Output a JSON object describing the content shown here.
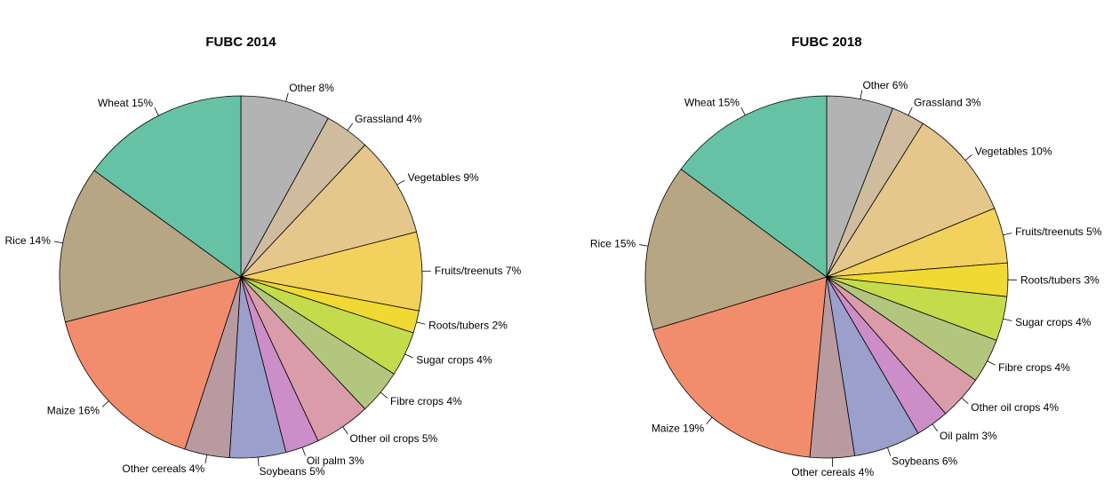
{
  "chart_data": [
    {
      "type": "pie",
      "title": "FUBC 2014",
      "start": "12 o'clock, clockwise",
      "slices": [
        {
          "label": "Other 8%",
          "value": 8,
          "color": "#b3b3b3"
        },
        {
          "label": "Grassland 4%",
          "value": 4,
          "color": "#cfbc9f"
        },
        {
          "label": "Vegetables 9%",
          "value": 9,
          "color": "#e5c78c"
        },
        {
          "label": "Fruits/treenuts 7%",
          "value": 7,
          "color": "#f2d15c"
        },
        {
          "label": "Roots/tubers 2%",
          "value": 2,
          "color": "#f0d932"
        },
        {
          "label": "Sugar crops 4%",
          "value": 4,
          "color": "#c4dc4c"
        },
        {
          "label": "Fibre crops 4%",
          "value": 4,
          "color": "#b3c67e"
        },
        {
          "label": "Other oil crops 5%",
          "value": 5,
          "color": "#d99ca8"
        },
        {
          "label": "Oil palm 3%",
          "value": 3,
          "color": "#cc8dc9"
        },
        {
          "label": "Soybeans 5%",
          "value": 5,
          "color": "#9b9fcb"
        },
        {
          "label": "Other cereals 4%",
          "value": 4,
          "color": "#b89aa0"
        },
        {
          "label": "Maize 16%",
          "value": 16,
          "color": "#f18d6c"
        },
        {
          "label": "Rice 14%",
          "value": 14,
          "color": "#b7a683"
        },
        {
          "label": "Wheat 15%",
          "value": 15,
          "color": "#66c2a5"
        }
      ]
    },
    {
      "type": "pie",
      "title": "FUBC 2018",
      "start": "12 o'clock, clockwise",
      "slices": [
        {
          "label": "Other 6%",
          "value": 6,
          "color": "#b3b3b3"
        },
        {
          "label": "Grassland 3%",
          "value": 3,
          "color": "#cfbc9f"
        },
        {
          "label": "Vegetables 10%",
          "value": 10,
          "color": "#e5c78c"
        },
        {
          "label": "Fruits/treenuts 5%",
          "value": 5,
          "color": "#f2d15c"
        },
        {
          "label": "Roots/tubers 3%",
          "value": 3,
          "color": "#f0d932"
        },
        {
          "label": "Sugar crops 4%",
          "value": 4,
          "color": "#c4dc4c"
        },
        {
          "label": "Fibre crops 4%",
          "value": 4,
          "color": "#b3c67e"
        },
        {
          "label": "Other oil crops 4%",
          "value": 4,
          "color": "#d99ca8"
        },
        {
          "label": "Oil palm 3%",
          "value": 3,
          "color": "#cc8dc9"
        },
        {
          "label": "Soybeans 6%",
          "value": 6,
          "color": "#9b9fcb"
        },
        {
          "label": "Other cereals 4%",
          "value": 4,
          "color": "#b89aa0"
        },
        {
          "label": "Maize 19%",
          "value": 19,
          "color": "#f18d6c"
        },
        {
          "label": "Rice 15%",
          "value": 15,
          "color": "#b7a683"
        },
        {
          "label": "Wheat 15%",
          "value": 15,
          "color": "#66c2a5"
        }
      ]
    }
  ]
}
